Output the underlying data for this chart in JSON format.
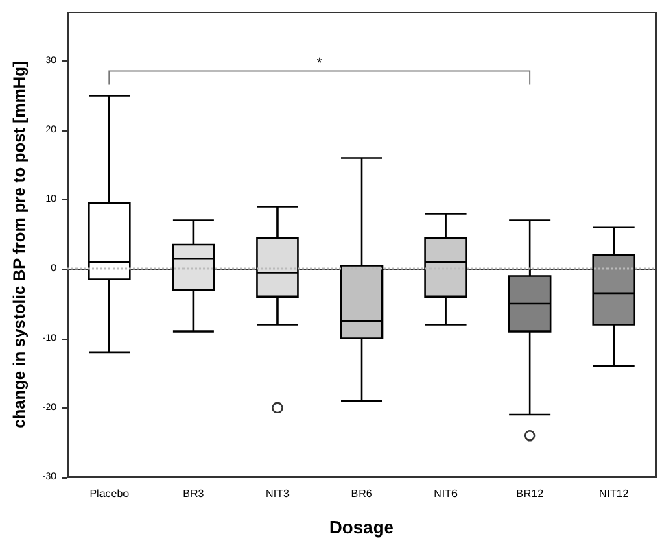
{
  "chart_data": {
    "type": "box",
    "xlabel": "Dosage",
    "ylabel": "change in systolic BP from pre to post [mmHg]",
    "categories": [
      "Placebo",
      "BR3",
      "NIT3",
      "BR6",
      "NIT6",
      "BR12",
      "NIT12"
    ],
    "boxes": [
      {
        "low": -12,
        "q1": -1.5,
        "median": 1,
        "q3": 9.5,
        "high": 25
      },
      {
        "low": -9,
        "q1": -3,
        "median": 1.5,
        "q3": 3.5,
        "high": 7
      },
      {
        "low": -8,
        "q1": -4,
        "median": -0.5,
        "q3": 4.5,
        "high": 9,
        "outliers": [
          -20
        ]
      },
      {
        "low": -19,
        "q1": -10,
        "median": -7.5,
        "q3": 0.5,
        "high": 16
      },
      {
        "low": -8,
        "q1": -4,
        "median": 1,
        "q3": 4.5,
        "high": 8
      },
      {
        "low": -21,
        "q1": -9,
        "median": -5,
        "q3": -1,
        "high": 7,
        "outliers": [
          -24
        ]
      },
      {
        "low": -14,
        "q1": -8,
        "median": -3.5,
        "q3": 2,
        "high": 6
      }
    ],
    "colors": [
      "#ffffff",
      "#e0e0e0",
      "#dcdcdc",
      "#c0c0c0",
      "#c8c8c8",
      "#808080",
      "#888888"
    ],
    "ylim": [
      -30,
      37
    ],
    "yticks": [
      -30,
      -20,
      -10,
      0,
      10,
      20,
      30
    ],
    "ref_lines": [
      {
        "axis": "y",
        "value": 0,
        "color": "#bbbbbb",
        "line_style": "dotted"
      }
    ],
    "annotations": [
      "*"
    ],
    "grid": false
  }
}
